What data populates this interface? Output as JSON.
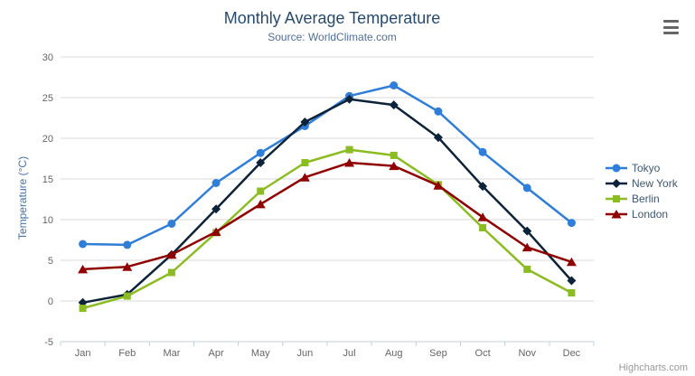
{
  "header": {
    "title": "Monthly Average Temperature",
    "subtitle": "Source: WorldClimate.com"
  },
  "export_menu": {
    "icon": "hamburger-icon"
  },
  "credit": "Highcharts.com",
  "chart_data": {
    "type": "line",
    "title": "Monthly Average Temperature",
    "subtitle": "Source: WorldClimate.com",
    "xlabel": "",
    "ylabel": "Temperature (°C)",
    "ylim": [
      -5,
      30
    ],
    "yticks": [
      -5,
      0,
      5,
      10,
      15,
      20,
      25,
      30
    ],
    "grid": true,
    "legend_position": "right",
    "categories": [
      "Jan",
      "Feb",
      "Mar",
      "Apr",
      "May",
      "Jun",
      "Jul",
      "Aug",
      "Sep",
      "Oct",
      "Nov",
      "Dec"
    ],
    "series": [
      {
        "name": "Tokyo",
        "color": "#2f7ed8",
        "marker": "circle",
        "values": [
          7.0,
          6.9,
          9.5,
          14.5,
          18.2,
          21.5,
          25.2,
          26.5,
          23.3,
          18.3,
          13.9,
          9.6
        ]
      },
      {
        "name": "New York",
        "color": "#0d233a",
        "marker": "diamond",
        "values": [
          -0.2,
          0.8,
          5.7,
          11.3,
          17.0,
          22.0,
          24.8,
          24.1,
          20.1,
          14.1,
          8.6,
          2.5
        ]
      },
      {
        "name": "Berlin",
        "color": "#8bbc21",
        "marker": "square",
        "values": [
          -0.9,
          0.6,
          3.5,
          8.4,
          13.5,
          17.0,
          18.6,
          17.9,
          14.3,
          9.0,
          3.9,
          1.0
        ]
      },
      {
        "name": "London",
        "color": "#910000",
        "marker": "triangle",
        "values": [
          3.9,
          4.2,
          5.7,
          8.5,
          11.9,
          15.2,
          17.0,
          16.6,
          14.2,
          10.3,
          6.6,
          4.8
        ]
      }
    ],
    "axis_colors": {
      "grid_line": "#d8d8d8",
      "axis_line": "#c0d0e0",
      "tick": "#c0d0e0",
      "label": "#666666"
    }
  }
}
